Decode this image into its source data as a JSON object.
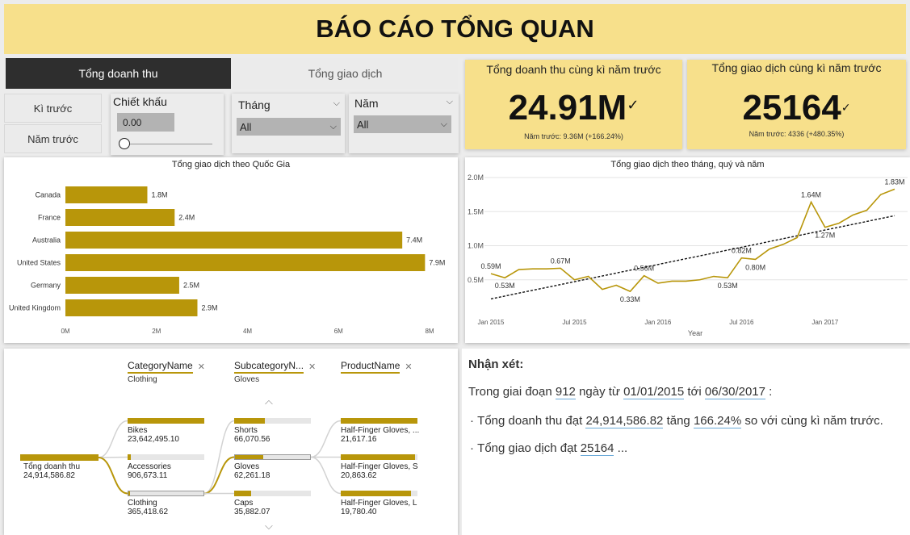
{
  "title": "BÁO CÁO TỔNG QUAN",
  "tabs": {
    "revenue": "Tổng doanh thu",
    "transactions": "Tổng giao dịch"
  },
  "buttons": {
    "prev_period": "Kì trước",
    "prev_year": "Năm trước"
  },
  "discount": {
    "label": "Chiết khấu",
    "value": "0.00"
  },
  "month": {
    "label": "Tháng",
    "value": "All"
  },
  "year": {
    "label": "Năm",
    "value": "All"
  },
  "kpi_revenue": {
    "title": "Tổng doanh thu cùng kì năm trước",
    "value": "24.91M",
    "sub": "Năm trước: 9.36M (+166.24%)"
  },
  "kpi_transactions": {
    "title": "Tổng giao dịch cùng kì năm trước",
    "value": "25164",
    "sub": "Năm trước: 4336 (+480.35%)"
  },
  "chart_data": [
    {
      "type": "bar",
      "title": "Tổng giao dịch theo Quốc Gia",
      "categories": [
        "Canada",
        "France",
        "Australia",
        "United States",
        "Germany",
        "United Kingdom"
      ],
      "values": [
        1.8,
        2.4,
        7.4,
        7.9,
        2.5,
        2.9
      ],
      "data_labels": [
        "1.8M",
        "2.4M",
        "7.4M",
        "7.9M",
        "2.5M",
        "2.9M"
      ],
      "x_ticks": [
        "0M",
        "2M",
        "4M",
        "6M",
        "8M"
      ],
      "xlim": [
        0,
        8
      ],
      "color": "#b8960a"
    },
    {
      "type": "line",
      "title": "Tổng giao dịch theo tháng, quý và năm",
      "xlabel": "Year",
      "x": [
        "2015-01",
        "2015-02",
        "2015-03",
        "2015-04",
        "2015-05",
        "2015-06",
        "2015-07",
        "2015-08",
        "2015-09",
        "2015-10",
        "2015-11",
        "2015-12",
        "2016-01",
        "2016-02",
        "2016-03",
        "2016-04",
        "2016-05",
        "2016-06",
        "2016-07",
        "2016-08",
        "2016-09",
        "2016-10",
        "2016-11",
        "2016-12",
        "2017-01",
        "2017-02",
        "2017-03",
        "2017-04",
        "2017-05",
        "2017-06"
      ],
      "values": [
        0.59,
        0.53,
        0.65,
        0.66,
        0.66,
        0.67,
        0.5,
        0.55,
        0.36,
        0.42,
        0.33,
        0.56,
        0.45,
        0.48,
        0.48,
        0.5,
        0.55,
        0.53,
        0.82,
        0.8,
        0.95,
        1.02,
        1.12,
        1.64,
        1.27,
        1.33,
        1.45,
        1.52,
        1.75,
        1.83
      ],
      "point_labels": {
        "0": "0.59M",
        "1": "0.53M",
        "5": "0.67M",
        "10": "0.33M",
        "11": "0.56M",
        "17": "0.53M",
        "18": "0.82M",
        "19": "0.80M",
        "23": "1.64M",
        "24": "1.27M",
        "29": "1.83M"
      },
      "trend": [
        0.22,
        1.44
      ],
      "y_ticks": [
        "2.0M",
        "1.5M",
        "1.0M",
        "0.5M"
      ],
      "ylim": [
        0,
        2.0
      ],
      "x_ticks": [
        "Jan 2015",
        "Jul 2015",
        "Jan 2016",
        "Jul 2016",
        "Jan 2017"
      ],
      "color": "#b8960a"
    }
  ],
  "tree": {
    "headers": [
      "CategoryName",
      "SubcategoryN...",
      "ProductName"
    ],
    "header_subs": [
      "Clothing",
      "Gloves",
      ""
    ],
    "root": {
      "label": "Tổng doanh thu",
      "value": "24,914,586.82"
    },
    "level1": [
      {
        "label": "Bikes",
        "value": "23,642,495.10",
        "fill": 1.0
      },
      {
        "label": "Accessories",
        "value": "906,673.11",
        "fill": 0.04
      },
      {
        "label": "Clothing",
        "value": "365,418.62",
        "fill": 0.02
      }
    ],
    "level2": [
      {
        "label": "Shorts",
        "value": "66,070.56",
        "fill": 0.4
      },
      {
        "label": "Gloves",
        "value": "62,261.18",
        "fill": 0.38
      },
      {
        "label": "Caps",
        "value": "35,882.07",
        "fill": 0.22
      }
    ],
    "level3": [
      {
        "label": "Half-Finger Gloves, ...",
        "value": "21,617.16",
        "fill": 1.0
      },
      {
        "label": "Half-Finger Gloves, S",
        "value": "20,863.62",
        "fill": 0.97
      },
      {
        "label": "Half-Finger Gloves, L",
        "value": "19,780.40",
        "fill": 0.92
      }
    ]
  },
  "comments": {
    "heading": "Nhận xét:",
    "line1_a": "Trong giai đoạn",
    "days": "912",
    "line1_b": "ngày từ",
    "start": "01/01/2015",
    "line1_c": "tới",
    "end": "06/30/2017",
    "line1_d": ":",
    "b1_a": "Tổng doanh thu đạt",
    "revenue": "24,914,586.82",
    "b1_b": "tăng",
    "growth": "166.24%",
    "b1_c": "so với cùng kì năm trước.",
    "b2_a": "Tổng giao dịch đạt",
    "txn": "25164",
    "b2_b": "..."
  }
}
